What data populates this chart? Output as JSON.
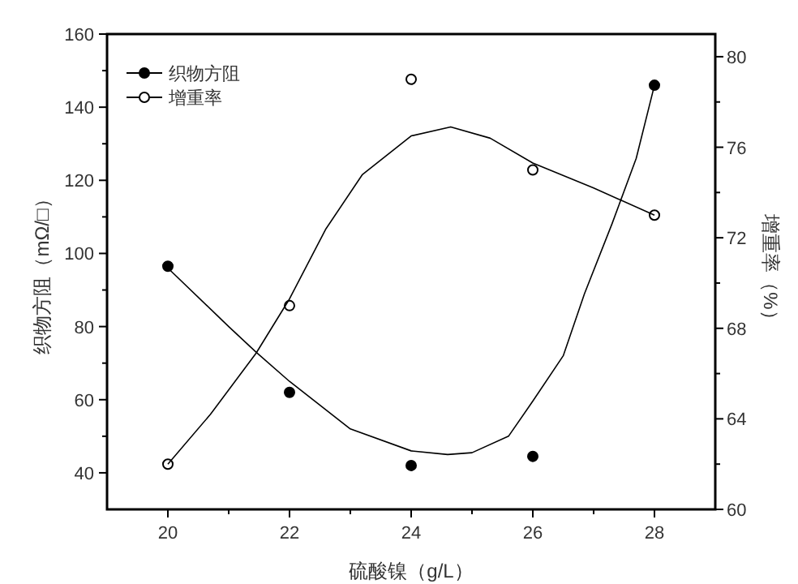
{
  "chart_data": {
    "type": "scatter",
    "xlabel": "硫酸镍（g/L）",
    "ylabel": "织物方阻（mΩ/□）",
    "y2label": "增重率（%）",
    "xlim": [
      19,
      29
    ],
    "ylim": [
      30,
      160
    ],
    "y2lim": [
      60,
      81
    ],
    "xticks": [
      20,
      {
        "value": 21,
        "label": null
      },
      22,
      {
        "value": 23,
        "label": null
      },
      24,
      {
        "value": 25,
        "label": null
      },
      26,
      {
        "value": 27,
        "label": null
      },
      28
    ],
    "yticks": [
      40,
      {
        "value": 50,
        "label": null
      },
      60,
      {
        "value": 70,
        "label": null
      },
      80,
      {
        "value": 90,
        "label": null
      },
      100,
      {
        "value": 110,
        "label": null
      },
      120,
      {
        "value": 130,
        "label": null
      },
      140,
      {
        "value": 150,
        "label": null
      },
      160
    ],
    "y2ticks": [
      60,
      {
        "value": 62,
        "label": null
      },
      64,
      {
        "value": 66,
        "label": null
      },
      68,
      {
        "value": 70,
        "label": null
      },
      72,
      {
        "value": 74,
        "label": null
      },
      76,
      {
        "value": 78,
        "label": null
      },
      80
    ],
    "grid": false,
    "legend": "top left",
    "series": [
      {
        "name": "织物方阻",
        "color": "#000000",
        "marker": "circle",
        "x": [
          20,
          22,
          24,
          26,
          28
        ],
        "values": [
          96.5,
          62,
          42,
          44.5,
          146
        ]
      },
      {
        "name": "增重率",
        "color": "#000000",
        "marker": "circle",
        "axis": "y2",
        "x": [
          20,
          22,
          24,
          26,
          28
        ],
        "values": [
          62,
          69,
          79,
          75,
          73
        ]
      },
      {
        "type": "line",
        "color": "#000000",
        "marker": "none",
        "x": [
          20,
          21,
          21.45,
          22,
          23,
          24,
          24.6,
          25,
          25.6,
          26,
          26.5,
          26.85,
          27.3,
          27.7,
          28
        ],
        "values": [
          96,
          80,
          73,
          65,
          52,
          46,
          45,
          45.5,
          50,
          59.6,
          72,
          89,
          108,
          126,
          146
        ]
      },
      {
        "type": "line",
        "color": "#000000",
        "marker": "none",
        "axis": "y2",
        "x": [
          20,
          20.7,
          21.45,
          22,
          22.6,
          23.2,
          24,
          24.65,
          25.3,
          26,
          27,
          28
        ],
        "values": [
          62,
          64.2,
          66.9,
          69.3,
          72.4,
          74.8,
          76.5,
          76.9,
          76.4,
          75.3,
          74.2,
          73
        ]
      }
    ]
  }
}
